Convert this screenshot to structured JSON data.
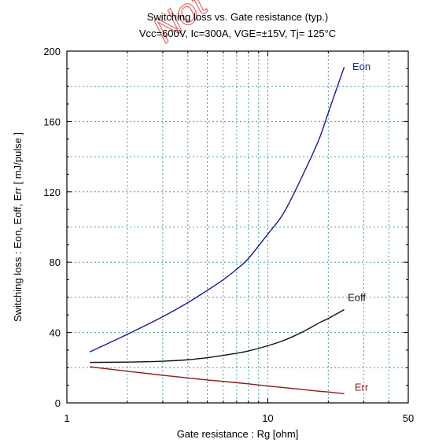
{
  "chart_data": {
    "type": "line",
    "title": "Switching loss  vs.  Gate resistance (typ.)",
    "subtitle": "Vcc=600V, Ic=300A, VGE=±15V, Tj= 125°C",
    "xlabel": "Gate resistance  :  Rg  [ohm]",
    "ylabel": "Switching loss  :  Eon, Eoff, Err  [ mJ/pulse ]",
    "xscale": "log",
    "xlim": [
      1,
      50
    ],
    "ylim": [
      0,
      200
    ],
    "x_ticks": [
      {
        "value": 1,
        "label": "1"
      },
      {
        "value": 10,
        "label": "10"
      },
      {
        "value": 50,
        "label": "50"
      }
    ],
    "y_ticks": [
      {
        "value": 0,
        "label": "0"
      },
      {
        "value": 40,
        "label": "40"
      },
      {
        "value": 80,
        "label": "80"
      },
      {
        "value": 120,
        "label": "120"
      },
      {
        "value": 160,
        "label": "160"
      },
      {
        "value": 200,
        "label": "200"
      }
    ],
    "grid": true,
    "colors": {
      "grid": "#4a9a9a",
      "axis": "#000000",
      "plot_bg": "#ffffff"
    },
    "watermark": "Not",
    "series": [
      {
        "name": "Eon",
        "color": "#1a1a9a",
        "x": [
          1.3,
          2,
          3,
          4,
          5,
          6,
          7,
          8,
          10,
          12,
          15,
          18,
          20,
          24
        ],
        "y": [
          29,
          39,
          49,
          57,
          64,
          70,
          76,
          82,
          96,
          108,
          130,
          150,
          165,
          191
        ]
      },
      {
        "name": "Eoff",
        "color": "#111111",
        "x": [
          1.3,
          2,
          3,
          4,
          5,
          6,
          7,
          8,
          10,
          12,
          15,
          18,
          20,
          24
        ],
        "y": [
          23,
          23.2,
          23.7,
          24.5,
          25.7,
          27,
          28.2,
          29.5,
          32.5,
          35.5,
          40.5,
          45.5,
          48,
          53
        ]
      },
      {
        "name": "Err",
        "color": "#8b1a1a",
        "x": [
          1.3,
          2,
          3,
          4,
          5,
          6,
          8,
          10,
          12,
          15,
          18,
          20,
          24
        ],
        "y": [
          20.5,
          18,
          15.7,
          14.2,
          13,
          12.2,
          10.8,
          9.6,
          8.7,
          7.6,
          6.6,
          6.2,
          5.2
        ]
      }
    ]
  }
}
